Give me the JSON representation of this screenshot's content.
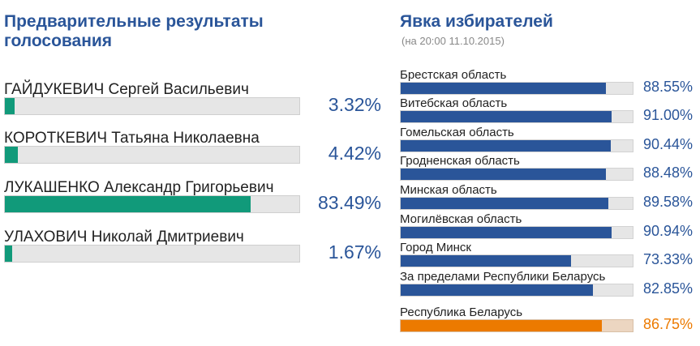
{
  "left_title": "Предварительные результаты голосования",
  "right_title": "Явка избирателей",
  "right_subtitle": "(на 20:00 11.10.2015)",
  "colors": {
    "title": "#2a5599",
    "candidate_bar": "#119a7a",
    "region_bar": "#2a5599",
    "total_bar": "#ec7a00",
    "track": "#e6e6e6"
  },
  "chart_data": [
    {
      "type": "bar",
      "orientation": "horizontal",
      "title": "Предварительные результаты голосования",
      "xlim": [
        0,
        100
      ],
      "categories": [
        "ГАЙДУКЕВИЧ Сергей Васильевич",
        "КОРОТКЕВИЧ Татьяна Николаевна",
        "ЛУКАШЕНКО Александр Григорьевич",
        "УЛАХОВИЧ Николай Дмитриевич"
      ],
      "values": [
        3.32,
        4.42,
        83.49,
        1.67
      ],
      "labels": [
        "3.32%",
        "4.42%",
        "83.49%",
        "1.67%"
      ]
    },
    {
      "type": "bar",
      "orientation": "horizontal",
      "title": "Явка избирателей",
      "subtitle": "(на 20:00 11.10.2015)",
      "xlim": [
        0,
        100
      ],
      "categories": [
        "Брестская область",
        "Витебская область",
        "Гомельская область",
        "Гродненская область",
        "Минская область",
        "Могилёвская область",
        "Город Минск",
        "За пределами Республики Беларусь",
        "Республика Беларусь"
      ],
      "values": [
        88.55,
        91.0,
        90.44,
        88.48,
        89.58,
        90.94,
        73.33,
        82.85,
        86.75
      ],
      "labels": [
        "88.55%",
        "91.00%",
        "90.44%",
        "88.48%",
        "89.58%",
        "90.94%",
        "73.33%",
        "82.85%",
        "86.75%"
      ],
      "highlight_index": 8
    }
  ]
}
